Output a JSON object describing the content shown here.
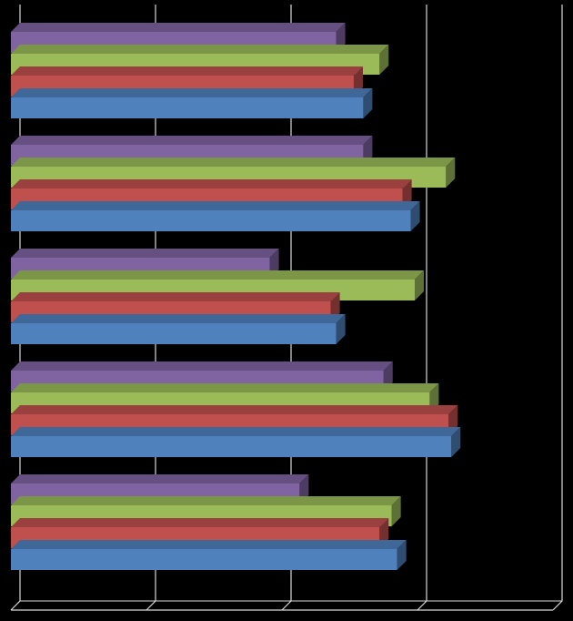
{
  "chart_data": {
    "type": "bar3d",
    "orientation": "horizontal",
    "categories": [
      null,
      null,
      null,
      null,
      null
    ],
    "series": [
      {
        "color": "#4f81bd",
        "values": [
          2.85,
          3.25,
          2.4,
          2.95,
          2.6
        ]
      },
      {
        "color": "#c0504d",
        "values": [
          2.72,
          3.23,
          2.36,
          2.89,
          2.53
        ]
      },
      {
        "color": "#9bbb59",
        "values": [
          2.81,
          3.09,
          2.98,
          3.21,
          2.72
        ]
      },
      {
        "color": "#8064a2",
        "values": [
          2.13,
          2.75,
          1.91,
          2.6,
          2.4
        ]
      }
    ],
    "xlim": [
      0,
      4
    ],
    "xticks": [
      0,
      1,
      2,
      3,
      4
    ],
    "grid": true
  }
}
